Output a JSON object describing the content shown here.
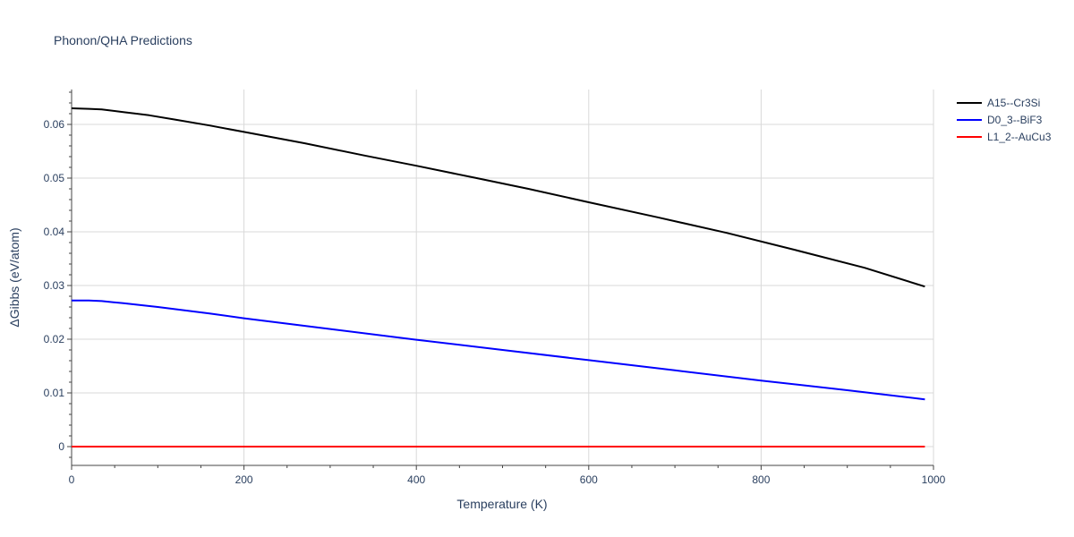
{
  "chart_data": {
    "type": "line",
    "title": "Phonon/QHA Predictions",
    "xlabel": "Temperature (K)",
    "ylabel": "ΔGibbs (eV/atom)",
    "xlim": [
      0,
      1000
    ],
    "ylim": [
      -0.0035,
      0.0665
    ],
    "x_ticks": [
      0,
      200,
      400,
      600,
      800,
      1000
    ],
    "y_ticks": [
      0,
      0.01,
      0.02,
      0.03,
      0.04,
      0.05,
      0.06
    ],
    "x_tick_labels": [
      "0",
      "200",
      "400",
      "600",
      "800",
      "1000"
    ],
    "y_tick_labels": [
      "0",
      "0.01",
      "0.02",
      "0.03",
      "0.04",
      "0.05",
      "0.06"
    ],
    "grid": true,
    "legend_position": "top-right",
    "series": [
      {
        "name": "A15--Cr3Si",
        "color": "#000000",
        "x": [
          0,
          20,
          35,
          60,
          90,
          120,
          160,
          200,
          270,
          340,
          400,
          470,
          530,
          600,
          680,
          760,
          840,
          920,
          990
        ],
        "y": [
          0.063,
          0.0629,
          0.0628,
          0.0623,
          0.0617,
          0.0609,
          0.0598,
          0.0586,
          0.0565,
          0.0542,
          0.0523,
          0.05,
          0.048,
          0.0455,
          0.0427,
          0.0398,
          0.0366,
          0.0333,
          0.0298
        ]
      },
      {
        "name": "D0_3--BiF3",
        "color": "#0000ff",
        "x": [
          0,
          20,
          35,
          60,
          100,
          160,
          200,
          300,
          400,
          500,
          600,
          700,
          800,
          900,
          990
        ],
        "y": [
          0.0272,
          0.0272,
          0.0271,
          0.0267,
          0.026,
          0.0248,
          0.0239,
          0.0219,
          0.0199,
          0.018,
          0.0161,
          0.0142,
          0.0123,
          0.0105,
          0.0088
        ]
      },
      {
        "name": "L1_2--AuCu3",
        "color": "#ff0000",
        "x": [
          0,
          990
        ],
        "y": [
          0,
          0
        ]
      }
    ]
  }
}
